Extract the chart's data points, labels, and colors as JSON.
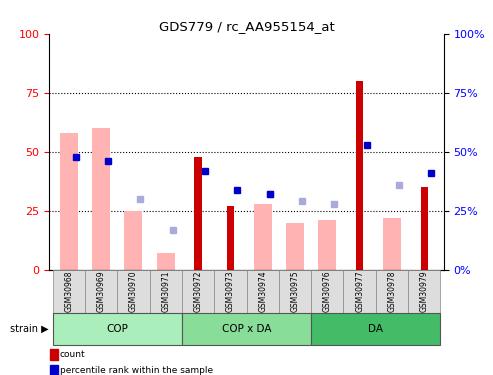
{
  "title": "GDS779 / rc_AA955154_at",
  "samples": [
    "GSM30968",
    "GSM30969",
    "GSM30970",
    "GSM30971",
    "GSM30972",
    "GSM30973",
    "GSM30974",
    "GSM30975",
    "GSM30976",
    "GSM30977",
    "GSM30978",
    "GSM30979"
  ],
  "count_values": [
    0,
    0,
    0,
    0,
    48,
    27,
    0,
    0,
    0,
    80,
    0,
    35
  ],
  "rank_values": [
    48,
    46,
    0,
    0,
    42,
    34,
    32,
    0,
    0,
    53,
    0,
    41
  ],
  "value_absent": [
    58,
    60,
    25,
    7,
    0,
    0,
    28,
    20,
    21,
    0,
    22,
    0
  ],
  "rank_absent": [
    0,
    0,
    30,
    17,
    0,
    0,
    32,
    29,
    28,
    0,
    36,
    0
  ],
  "count_color": "#cc0000",
  "rank_color": "#0000cc",
  "value_absent_color": "#ffb3b3",
  "rank_absent_color": "#aaaadd",
  "groups": [
    {
      "label": "COP",
      "start": 0,
      "end": 4,
      "color": "#aaeebb"
    },
    {
      "label": "COP x DA",
      "start": 4,
      "end": 8,
      "color": "#88dd99"
    },
    {
      "label": "DA",
      "start": 8,
      "end": 12,
      "color": "#44bb66"
    }
  ],
  "ylim": [
    0,
    100
  ],
  "yticks": [
    0,
    25,
    50,
    75,
    100
  ],
  "background_color": "#ffffff"
}
